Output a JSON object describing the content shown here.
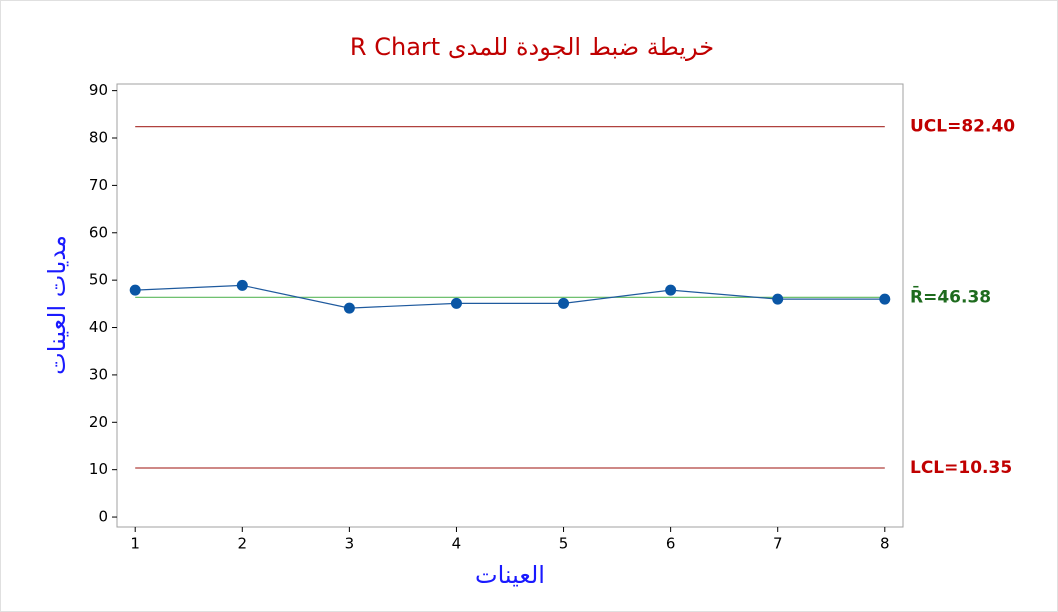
{
  "chart_data": {
    "type": "line",
    "title": "خريطة ضبط الجودة للمدى R Chart",
    "x_label": "العينات",
    "y_label": "مديات العينات",
    "x": [
      1,
      2,
      3,
      4,
      5,
      6,
      7,
      8
    ],
    "series": [
      {
        "name": "R",
        "color": "#1f5a9e",
        "marker_color": "#0a56a5",
        "values": [
          47.9,
          48.9,
          44.1,
          45.1,
          45.1,
          47.9,
          46.0,
          46.0
        ]
      }
    ],
    "control_lines": [
      {
        "value": 82.4,
        "label": "UCL=82.40",
        "color": "#b0413e",
        "label_color": "#c00000"
      },
      {
        "value": 46.38,
        "label": "R̄=46.38",
        "color": "#5cb85c",
        "label_color": "#1e6b1e"
      },
      {
        "value": 10.35,
        "label": "LCL=10.35",
        "color": "#b0413e",
        "label_color": "#c00000"
      }
    ],
    "xlim": [
      0.83,
      8.17
    ],
    "ylim": [
      -2.1,
      91.4
    ],
    "xticks": [
      1,
      2,
      3,
      4,
      5,
      6,
      7,
      8
    ],
    "yticks": [
      0,
      10,
      20,
      30,
      40,
      50,
      60,
      70,
      80,
      90
    ]
  }
}
